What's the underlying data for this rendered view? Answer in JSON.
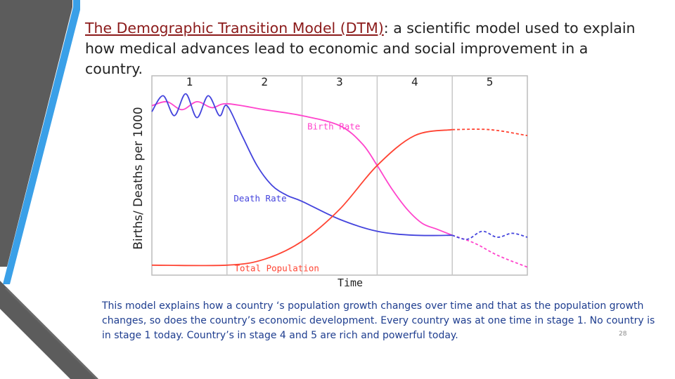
{
  "slide": {
    "title_underlined": "The Demographic Transition Model (DTM)",
    "title_rest": ": a scientific model used to explain how medical advances lead to economic and social improvement in a country.",
    "caption": "This model explains how a country ‘s population growth changes over time and that as the population growth changes, so does the country’s economic development.  Every country was at one time in stage 1. No country is in stage 1 today. Country’s in stage 4 and 5 are rich and powerful today.",
    "page_number": "28"
  },
  "colors": {
    "birth": "#ff44cc",
    "death": "#4444dd",
    "population": "#ff4433",
    "accent_blue": "#3aa0e8",
    "dark_gray": "#5a5a5a"
  },
  "chart_data": {
    "type": "line",
    "title": "",
    "xlabel": "Time",
    "ylabel": "Births/ Deaths per 1000",
    "x_range": [
      0,
      5
    ],
    "y_range": [
      0,
      100
    ],
    "stages": [
      "1",
      "2",
      "3",
      "4",
      "5"
    ],
    "series": [
      {
        "name": "Birth Rate",
        "x": [
          0,
          0.2,
          0.4,
          0.6,
          0.8,
          1.0,
          1.5,
          2.0,
          2.5,
          2.8,
          3.0,
          3.2,
          3.4,
          3.6,
          3.8,
          4.0
        ],
        "y": [
          85,
          87,
          83,
          87,
          84,
          86,
          83,
          80,
          75,
          66,
          55,
          43,
          33,
          26,
          23,
          20
        ],
        "extension": {
          "x": [
            4.0,
            4.3,
            4.6,
            5.0
          ],
          "y": [
            20,
            16,
            10,
            4
          ]
        }
      },
      {
        "name": "Death Rate",
        "x": [
          0,
          0.15,
          0.3,
          0.45,
          0.6,
          0.75,
          0.9,
          1.0,
          1.2,
          1.4,
          1.6,
          1.8,
          2.0,
          2.5,
          3.0,
          3.5,
          4.0
        ],
        "y": [
          82,
          90,
          80,
          91,
          79,
          90,
          80,
          85,
          70,
          55,
          45,
          40,
          37,
          28,
          22,
          20,
          20
        ],
        "extension": {
          "x": [
            4.0,
            4.2,
            4.4,
            4.6,
            4.8,
            5.0
          ],
          "y": [
            20,
            18,
            22,
            19,
            21,
            19
          ]
        }
      },
      {
        "name": "Total Population",
        "x": [
          0,
          1.0,
          1.5,
          2.0,
          2.5,
          3.0,
          3.5,
          4.0
        ],
        "y": [
          5,
          5,
          8,
          17,
          33,
          55,
          70,
          73
        ],
        "extension": {
          "x": [
            4.0,
            4.5,
            5.0
          ],
          "y": [
            73,
            73,
            70
          ]
        }
      }
    ],
    "labels": [
      "Birth Rate",
      "Death Rate",
      "Total Population"
    ]
  }
}
